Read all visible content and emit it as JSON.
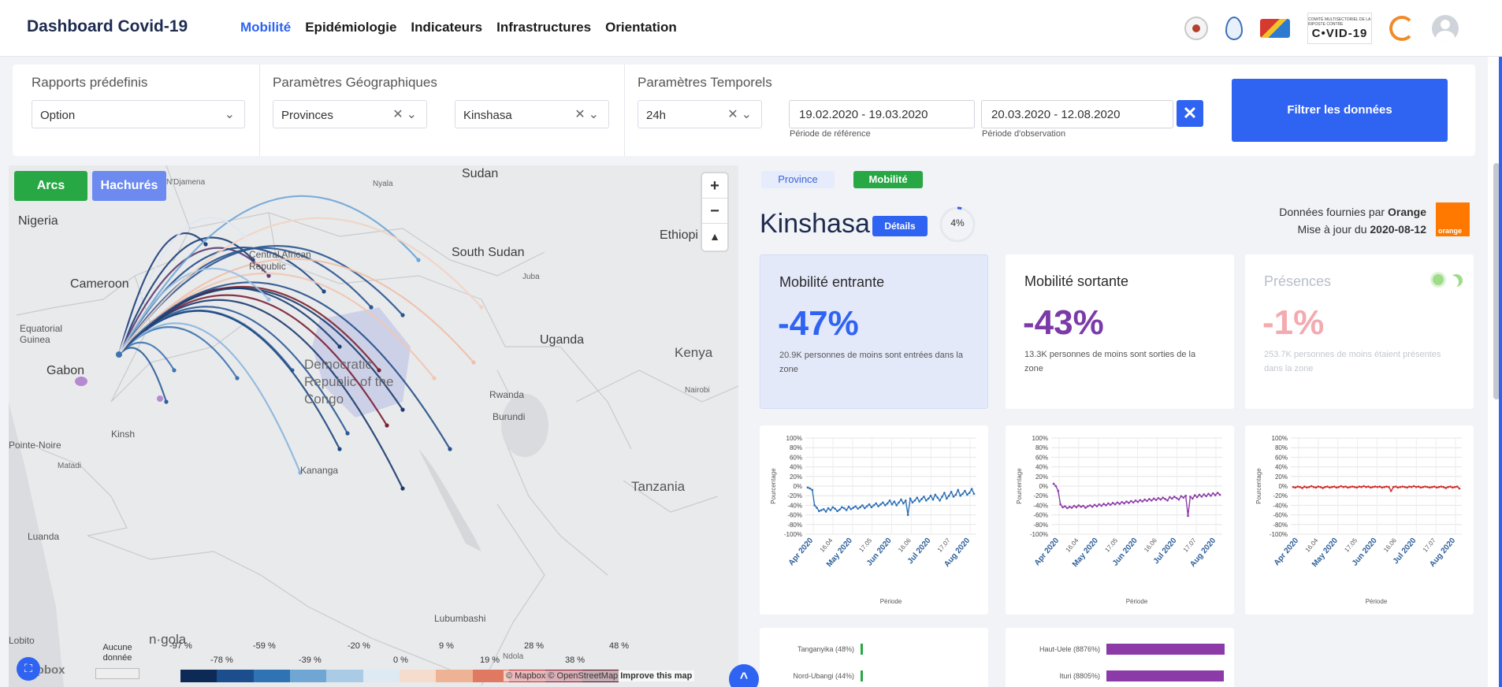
{
  "app": {
    "title": "Dashboard Covid-19"
  },
  "nav": [
    {
      "label": "Mobilité",
      "active": true
    },
    {
      "label": "Epidémiologie",
      "active": false
    },
    {
      "label": "Indicateurs",
      "active": false
    },
    {
      "label": "Infrastructures",
      "active": false
    },
    {
      "label": "Orientation",
      "active": false
    }
  ],
  "header_logos": {
    "covid_small": "COMITÉ MULTISECTORIEL DE LA RIPOSTE CONTRE",
    "covid_big": "C•VID-19"
  },
  "filters": {
    "predefined": {
      "title": "Rapports prédefinis",
      "value": "Option"
    },
    "geo": {
      "title": "Paramètres Géographiques",
      "level": "Provinces",
      "place": "Kinshasa"
    },
    "time": {
      "title": "Paramètres Temporels",
      "granularity": "24h",
      "reference_period": "19.02.2020 - 19.03.2020",
      "reference_caption": "Période de référence",
      "observation_period": "20.03.2020 - 12.08.2020",
      "observation_caption": "Période d'observation"
    },
    "submit_label": "Filtrer les données"
  },
  "map": {
    "buttons": {
      "arcs": "Arcs",
      "hatched": "Hachurés"
    },
    "labels": {
      "sudan": "Sudan",
      "ndjamena": "N'Djamena",
      "nyala": "Nyala",
      "nigeria": "Nigeria",
      "ethiopia": "Ethiopi",
      "car": "Central African Republic",
      "south_sudan": "South Sudan",
      "juba": "Juba",
      "cameroon": "Cameroon",
      "eq_guinea": "Equatorial Guinea",
      "uganda": "Uganda",
      "gabon": "Gabon",
      "kenya": "Kenya",
      "drc": "Democratic Republic of the Congo",
      "rwanda": "Rwanda",
      "nairobi": "Nairobi",
      "burundi": "Burundi",
      "kinshasa": "Kinsh",
      "pointe_noire": "Pointe-Noire",
      "matadi": "Matadi",
      "kananga": "Kananga",
      "tanzania": "Tanzania",
      "luanda": "Luanda",
      "lubumbashi": "Lubumbashi",
      "lobito": "Lobito",
      "ndola": "Ndola",
      "angola": "n·gola"
    },
    "legend": {
      "no_data": "Aucune donnée",
      "ticks_top": [
        "-97 %",
        "-59 %",
        "-20 %",
        "9 %",
        "28 %",
        "48 %"
      ],
      "ticks_bottom": [
        "-78 %",
        "-39 %",
        "0 %",
        "19 %",
        "38 %"
      ],
      "colors": [
        "#0d2a57",
        "#1c4d8c",
        "#2f73b5",
        "#6fa6d3",
        "#a9cbe6",
        "#dde9f3",
        "#f6dccc",
        "#eeb394",
        "#df7962",
        "#c2363c",
        "#931b34",
        "#5b0f24"
      ]
    },
    "mapbox_label": "mapbox",
    "attribution": {
      "mapbox": "© Mapbox",
      "osm": "© OpenStreetMap",
      "improve": "Improve this map"
    }
  },
  "panel": {
    "tags": {
      "province": "Province",
      "mobility": "Mobilité"
    },
    "city": "Kinshasa",
    "details_label": "Détails",
    "percent": "4%",
    "provider_line1_prefix": "Données fournies par",
    "provider_line1_name": "Orange",
    "provider_line2_prefix": "Mise à jour du",
    "provider_line2_date": "2020-08-12",
    "orange_logo_text": "orange",
    "cards": [
      {
        "title": "Mobilité entrante",
        "value": "-47%",
        "desc": "20.9K personnes de moins sont entrées dans la zone",
        "color": "#2f63f2"
      },
      {
        "title": "Mobilité sortante",
        "value": "-43%",
        "desc": "13.3K personnes de moins sont sorties de la zone",
        "color": "#7b3aa8"
      },
      {
        "title": "Présences",
        "value": "-1%",
        "desc": "253.7K personnes de moins étaient présentes dans la zone",
        "color": "#f3aab0"
      }
    ]
  },
  "chart_data": [
    {
      "type": "line",
      "title": "",
      "xlabel": "Période",
      "ylabel": "Pourcentage",
      "ylim": [
        -100,
        100
      ],
      "yticks": [
        "100%",
        "80%",
        "60%",
        "40%",
        "20%",
        "0%",
        "-20%",
        "-40%",
        "-60%",
        "-80%",
        "-100%"
      ],
      "xticks": [
        "Apr 2020",
        "16.04",
        "May 2020",
        "17.05",
        "Jun 2020",
        "16.06",
        "Jul 2020",
        "17.07",
        "Aug 2020"
      ],
      "series": [
        {
          "color": "#2d6fb5",
          "values": [
            -3,
            -5,
            -8,
            -40,
            -45,
            -52,
            -50,
            -48,
            -53,
            -46,
            -50,
            -44,
            -47,
            -52,
            -49,
            -44,
            -46,
            -50,
            -43,
            -48,
            -45,
            -42,
            -47,
            -44,
            -40,
            -46,
            -42,
            -38,
            -44,
            -40,
            -36,
            -42,
            -38,
            -34,
            -40,
            -36,
            -30,
            -38,
            -32,
            -40,
            -34,
            -28,
            -36,
            -30,
            -60,
            -26,
            -34,
            -30,
            -24,
            -32,
            -27,
            -22,
            -30,
            -26,
            -20,
            -28,
            -18,
            -24,
            -30,
            -22,
            -14,
            -26,
            -20,
            -12,
            -22,
            -18,
            -8,
            -20,
            -16,
            -10,
            -18,
            -14,
            -6,
            -16
          ]
        }
      ]
    },
    {
      "type": "line",
      "title": "",
      "xlabel": "Période",
      "ylabel": "Pourcentage",
      "ylim": [
        -100,
        100
      ],
      "yticks": [
        "100%",
        "80%",
        "60%",
        "40%",
        "20%",
        "0%",
        "-20%",
        "-40%",
        "-60%",
        "-80%",
        "-100%"
      ],
      "xticks": [
        "Apr 2020",
        "16.04",
        "May 2020",
        "17.05",
        "Jun 2020",
        "16.06",
        "Jul 2020",
        "17.07",
        "Aug 2020"
      ],
      "series": [
        {
          "color": "#8c3aa8",
          "values": [
            5,
            0,
            -10,
            -38,
            -44,
            -42,
            -46,
            -43,
            -45,
            -41,
            -44,
            -40,
            -43,
            -41,
            -45,
            -42,
            -40,
            -43,
            -39,
            -42,
            -38,
            -41,
            -37,
            -40,
            -36,
            -39,
            -35,
            -38,
            -34,
            -37,
            -33,
            -36,
            -32,
            -35,
            -31,
            -34,
            -30,
            -33,
            -29,
            -32,
            -28,
            -31,
            -27,
            -30,
            -26,
            -29,
            -25,
            -28,
            -24,
            -27,
            -30,
            -23,
            -26,
            -22,
            -25,
            -28,
            -21,
            -24,
            -20,
            -62,
            -22,
            -26,
            -19,
            -23,
            -18,
            -22,
            -17,
            -21,
            -16,
            -20,
            -15,
            -19,
            -14,
            -18
          ]
        }
      ]
    },
    {
      "type": "line",
      "title": "",
      "xlabel": "Période",
      "ylabel": "Pourcentage",
      "ylim": [
        -100,
        100
      ],
      "yticks": [
        "100%",
        "80%",
        "60%",
        "40%",
        "20%",
        "0%",
        "-20%",
        "-40%",
        "-60%",
        "-80%",
        "-100%"
      ],
      "xticks": [
        "Apr 2020",
        "16.04",
        "May 2020",
        "17.05",
        "Jun 2020",
        "16.06",
        "Jul 2020",
        "17.07",
        "Aug 2020"
      ],
      "series": [
        {
          "color": "#d42c2c",
          "values": [
            -2,
            -3,
            -1,
            -2,
            -4,
            -1,
            -3,
            -2,
            0,
            -2,
            -3,
            -1,
            -2,
            -4,
            -2,
            -1,
            -3,
            -2,
            -1,
            -3,
            -2,
            0,
            -2,
            -1,
            -3,
            -2,
            -1,
            -2,
            -3,
            -1,
            -2,
            0,
            -2,
            -1,
            -3,
            -2,
            -1,
            -2,
            -1,
            -3,
            -2,
            -1,
            -2,
            -10,
            -2,
            -1,
            -3,
            -2,
            -1,
            -2,
            -3,
            -1,
            -2,
            0,
            -2,
            -1,
            -3,
            -2,
            -1,
            -2,
            -3,
            -2,
            -1,
            -3,
            -2,
            -1,
            -2,
            -4,
            -2,
            -1,
            -3,
            -2,
            -1,
            -5
          ]
        }
      ]
    },
    {
      "type": "bar",
      "categories": [
        "Tanganyika (48%)",
        "Nord-Ubangi (44%)"
      ],
      "values": [
        48,
        44
      ],
      "color": "#28a745"
    },
    {
      "type": "bar",
      "categories": [
        "Haut-Uele (8876%)",
        "Ituri (8805%)"
      ],
      "values": [
        8876,
        8805
      ],
      "color": "#8c3aa8"
    }
  ]
}
